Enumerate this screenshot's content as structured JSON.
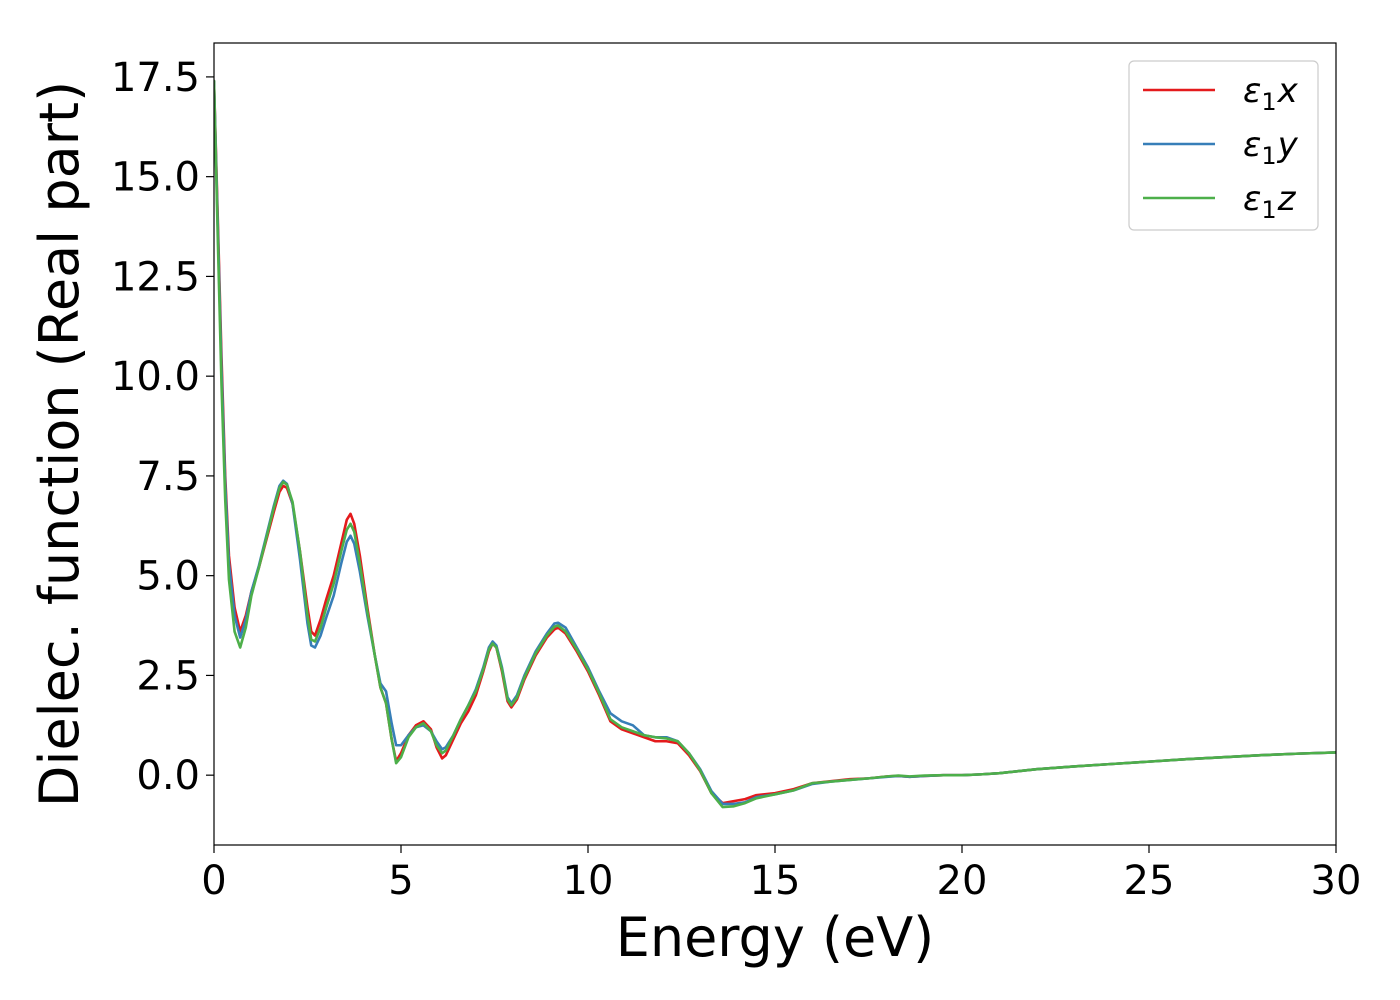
{
  "chart_data": {
    "type": "line",
    "title": "",
    "xlabel": "Energy (eV)",
    "ylabel": "Dielec. function (Real part)",
    "xlim": [
      0,
      30
    ],
    "ylim": [
      -1.75,
      18.35
    ],
    "xticks": [
      0,
      5,
      10,
      15,
      20,
      25,
      30
    ],
    "xtick_labels": [
      "0",
      "5",
      "10",
      "15",
      "20",
      "25",
      "30"
    ],
    "yticks": [
      0.0,
      2.5,
      5.0,
      7.5,
      10.0,
      12.5,
      15.0,
      17.5
    ],
    "ytick_labels": [
      "0.0",
      "2.5",
      "5.0",
      "7.5",
      "10.0",
      "12.5",
      "15.0",
      "17.5"
    ],
    "grid": false,
    "legend_position": "top-right",
    "series": [
      {
        "name": "ε1x",
        "legend": {
          "base": "ε",
          "sub": "1",
          "var": "x"
        },
        "color": "#e41a1c",
        "points": [
          [
            0,
            17.4
          ],
          [
            0.1,
            14.0
          ],
          [
            0.2,
            10.5
          ],
          [
            0.3,
            7.5
          ],
          [
            0.4,
            5.5
          ],
          [
            0.55,
            4.2
          ],
          [
            0.7,
            3.6
          ],
          [
            0.85,
            4.0
          ],
          [
            1.0,
            4.6
          ],
          [
            1.2,
            5.2
          ],
          [
            1.4,
            5.9
          ],
          [
            1.6,
            6.6
          ],
          [
            1.75,
            7.1
          ],
          [
            1.85,
            7.25
          ],
          [
            1.95,
            7.2
          ],
          [
            2.1,
            6.8
          ],
          [
            2.3,
            5.6
          ],
          [
            2.5,
            4.2
          ],
          [
            2.6,
            3.6
          ],
          [
            2.7,
            3.5
          ],
          [
            2.85,
            3.9
          ],
          [
            3.0,
            4.4
          ],
          [
            3.2,
            5.0
          ],
          [
            3.4,
            5.8
          ],
          [
            3.55,
            6.4
          ],
          [
            3.65,
            6.55
          ],
          [
            3.75,
            6.3
          ],
          [
            3.9,
            5.5
          ],
          [
            4.1,
            4.2
          ],
          [
            4.3,
            3.0
          ],
          [
            4.45,
            2.2
          ],
          [
            4.6,
            1.8
          ],
          [
            4.75,
            0.9
          ],
          [
            4.87,
            0.35
          ],
          [
            5.0,
            0.55
          ],
          [
            5.2,
            1.0
          ],
          [
            5.4,
            1.25
          ],
          [
            5.6,
            1.35
          ],
          [
            5.8,
            1.15
          ],
          [
            5.95,
            0.7
          ],
          [
            6.1,
            0.42
          ],
          [
            6.2,
            0.5
          ],
          [
            6.4,
            0.9
          ],
          [
            6.6,
            1.3
          ],
          [
            6.8,
            1.6
          ],
          [
            7.0,
            2.0
          ],
          [
            7.2,
            2.6
          ],
          [
            7.35,
            3.1
          ],
          [
            7.45,
            3.3
          ],
          [
            7.55,
            3.2
          ],
          [
            7.7,
            2.6
          ],
          [
            7.85,
            1.85
          ],
          [
            7.95,
            1.7
          ],
          [
            8.1,
            1.9
          ],
          [
            8.3,
            2.4
          ],
          [
            8.6,
            3.0
          ],
          [
            8.9,
            3.45
          ],
          [
            9.1,
            3.65
          ],
          [
            9.2,
            3.7
          ],
          [
            9.4,
            3.55
          ],
          [
            9.7,
            3.1
          ],
          [
            10.0,
            2.6
          ],
          [
            10.3,
            2.0
          ],
          [
            10.6,
            1.35
          ],
          [
            10.9,
            1.15
          ],
          [
            11.2,
            1.05
          ],
          [
            11.5,
            0.95
          ],
          [
            11.8,
            0.85
          ],
          [
            12.1,
            0.85
          ],
          [
            12.4,
            0.8
          ],
          [
            12.7,
            0.5
          ],
          [
            13.0,
            0.1
          ],
          [
            13.3,
            -0.45
          ],
          [
            13.6,
            -0.7
          ],
          [
            13.9,
            -0.65
          ],
          [
            14.2,
            -0.6
          ],
          [
            14.5,
            -0.5
          ],
          [
            15.0,
            -0.45
          ],
          [
            15.5,
            -0.35
          ],
          [
            16.0,
            -0.2
          ],
          [
            16.5,
            -0.15
          ],
          [
            17.0,
            -0.1
          ],
          [
            17.5,
            -0.08
          ],
          [
            18.0,
            -0.03
          ],
          [
            18.3,
            -0.02
          ],
          [
            18.6,
            -0.04
          ],
          [
            19.0,
            -0.02
          ],
          [
            19.5,
            0.0
          ],
          [
            20.0,
            0.0
          ],
          [
            20.5,
            0.02
          ],
          [
            21.0,
            0.05
          ],
          [
            21.5,
            0.1
          ],
          [
            22.0,
            0.15
          ],
          [
            23.0,
            0.22
          ],
          [
            24.0,
            0.28
          ],
          [
            25.0,
            0.34
          ],
          [
            26.0,
            0.4
          ],
          [
            27.0,
            0.45
          ],
          [
            28.0,
            0.5
          ],
          [
            29.0,
            0.54
          ],
          [
            30.0,
            0.57
          ]
        ]
      },
      {
        "name": "ε1y",
        "legend": {
          "base": "ε",
          "sub": "1",
          "var": "y"
        },
        "color": "#377eb8",
        "points": [
          [
            0,
            17.4
          ],
          [
            0.1,
            13.8
          ],
          [
            0.2,
            10.2
          ],
          [
            0.3,
            7.3
          ],
          [
            0.4,
            5.3
          ],
          [
            0.55,
            4.0
          ],
          [
            0.7,
            3.45
          ],
          [
            0.85,
            3.9
          ],
          [
            1.0,
            4.6
          ],
          [
            1.2,
            5.25
          ],
          [
            1.4,
            6.0
          ],
          [
            1.6,
            6.75
          ],
          [
            1.75,
            7.25
          ],
          [
            1.85,
            7.38
          ],
          [
            1.95,
            7.3
          ],
          [
            2.1,
            6.8
          ],
          [
            2.3,
            5.4
          ],
          [
            2.5,
            3.8
          ],
          [
            2.6,
            3.25
          ],
          [
            2.7,
            3.2
          ],
          [
            2.85,
            3.5
          ],
          [
            3.0,
            3.95
          ],
          [
            3.2,
            4.5
          ],
          [
            3.4,
            5.3
          ],
          [
            3.55,
            5.85
          ],
          [
            3.65,
            6.0
          ],
          [
            3.75,
            5.8
          ],
          [
            3.9,
            5.1
          ],
          [
            4.1,
            4.0
          ],
          [
            4.3,
            3.0
          ],
          [
            4.45,
            2.3
          ],
          [
            4.6,
            2.1
          ],
          [
            4.75,
            1.3
          ],
          [
            4.87,
            0.75
          ],
          [
            5.0,
            0.75
          ],
          [
            5.2,
            1.0
          ],
          [
            5.4,
            1.2
          ],
          [
            5.6,
            1.25
          ],
          [
            5.8,
            1.1
          ],
          [
            5.95,
            0.85
          ],
          [
            6.1,
            0.65
          ],
          [
            6.2,
            0.7
          ],
          [
            6.4,
            1.0
          ],
          [
            6.6,
            1.4
          ],
          [
            6.8,
            1.75
          ],
          [
            7.0,
            2.15
          ],
          [
            7.2,
            2.7
          ],
          [
            7.35,
            3.2
          ],
          [
            7.45,
            3.35
          ],
          [
            7.55,
            3.25
          ],
          [
            7.7,
            2.7
          ],
          [
            7.85,
            1.95
          ],
          [
            7.95,
            1.8
          ],
          [
            8.1,
            2.0
          ],
          [
            8.3,
            2.5
          ],
          [
            8.6,
            3.1
          ],
          [
            8.9,
            3.55
          ],
          [
            9.1,
            3.8
          ],
          [
            9.2,
            3.82
          ],
          [
            9.4,
            3.7
          ],
          [
            9.7,
            3.2
          ],
          [
            10.0,
            2.7
          ],
          [
            10.3,
            2.1
          ],
          [
            10.6,
            1.55
          ],
          [
            10.9,
            1.35
          ],
          [
            11.2,
            1.25
          ],
          [
            11.5,
            1.0
          ],
          [
            11.8,
            0.95
          ],
          [
            12.1,
            0.95
          ],
          [
            12.4,
            0.85
          ],
          [
            12.7,
            0.55
          ],
          [
            13.0,
            0.15
          ],
          [
            13.3,
            -0.4
          ],
          [
            13.6,
            -0.72
          ],
          [
            13.9,
            -0.72
          ],
          [
            14.2,
            -0.68
          ],
          [
            14.5,
            -0.55
          ],
          [
            15.0,
            -0.48
          ],
          [
            15.5,
            -0.38
          ],
          [
            16.0,
            -0.22
          ],
          [
            16.5,
            -0.16
          ],
          [
            17.0,
            -0.12
          ],
          [
            17.5,
            -0.08
          ],
          [
            18.0,
            -0.04
          ],
          [
            18.3,
            -0.02
          ],
          [
            18.6,
            -0.04
          ],
          [
            19.0,
            -0.02
          ],
          [
            19.5,
            0.0
          ],
          [
            20.0,
            0.0
          ],
          [
            20.5,
            0.02
          ],
          [
            21.0,
            0.05
          ],
          [
            21.5,
            0.1
          ],
          [
            22.0,
            0.15
          ],
          [
            23.0,
            0.22
          ],
          [
            24.0,
            0.28
          ],
          [
            25.0,
            0.34
          ],
          [
            26.0,
            0.4
          ],
          [
            27.0,
            0.45
          ],
          [
            28.0,
            0.5
          ],
          [
            29.0,
            0.54
          ],
          [
            30.0,
            0.57
          ]
        ]
      },
      {
        "name": "ε1z",
        "legend": {
          "base": "ε",
          "sub": "1",
          "var": "z"
        },
        "color": "#4daf4a",
        "points": [
          [
            0,
            17.4
          ],
          [
            0.1,
            13.5
          ],
          [
            0.2,
            9.8
          ],
          [
            0.3,
            6.9
          ],
          [
            0.4,
            4.9
          ],
          [
            0.55,
            3.6
          ],
          [
            0.7,
            3.2
          ],
          [
            0.85,
            3.7
          ],
          [
            1.0,
            4.5
          ],
          [
            1.2,
            5.2
          ],
          [
            1.4,
            5.95
          ],
          [
            1.6,
            6.7
          ],
          [
            1.75,
            7.2
          ],
          [
            1.85,
            7.35
          ],
          [
            1.95,
            7.28
          ],
          [
            2.1,
            6.85
          ],
          [
            2.3,
            5.6
          ],
          [
            2.5,
            4.0
          ],
          [
            2.6,
            3.4
          ],
          [
            2.7,
            3.35
          ],
          [
            2.85,
            3.7
          ],
          [
            3.0,
            4.2
          ],
          [
            3.2,
            4.8
          ],
          [
            3.4,
            5.6
          ],
          [
            3.55,
            6.15
          ],
          [
            3.65,
            6.3
          ],
          [
            3.75,
            6.1
          ],
          [
            3.9,
            5.3
          ],
          [
            4.1,
            4.1
          ],
          [
            4.3,
            3.0
          ],
          [
            4.45,
            2.2
          ],
          [
            4.6,
            1.8
          ],
          [
            4.75,
            0.9
          ],
          [
            4.87,
            0.3
          ],
          [
            5.0,
            0.45
          ],
          [
            5.2,
            0.95
          ],
          [
            5.4,
            1.2
          ],
          [
            5.6,
            1.3
          ],
          [
            5.8,
            1.1
          ],
          [
            5.95,
            0.75
          ],
          [
            6.1,
            0.55
          ],
          [
            6.2,
            0.62
          ],
          [
            6.4,
            1.0
          ],
          [
            6.6,
            1.4
          ],
          [
            6.8,
            1.75
          ],
          [
            7.0,
            2.1
          ],
          [
            7.2,
            2.65
          ],
          [
            7.35,
            3.15
          ],
          [
            7.45,
            3.3
          ],
          [
            7.55,
            3.2
          ],
          [
            7.7,
            2.65
          ],
          [
            7.85,
            1.9
          ],
          [
            7.95,
            1.75
          ],
          [
            8.1,
            1.95
          ],
          [
            8.3,
            2.45
          ],
          [
            8.6,
            3.05
          ],
          [
            8.9,
            3.5
          ],
          [
            9.1,
            3.72
          ],
          [
            9.2,
            3.75
          ],
          [
            9.4,
            3.6
          ],
          [
            9.7,
            3.15
          ],
          [
            10.0,
            2.65
          ],
          [
            10.3,
            2.05
          ],
          [
            10.6,
            1.4
          ],
          [
            10.9,
            1.2
          ],
          [
            11.2,
            1.1
          ],
          [
            11.5,
            1.0
          ],
          [
            11.8,
            0.95
          ],
          [
            12.1,
            0.92
          ],
          [
            12.4,
            0.85
          ],
          [
            12.7,
            0.55
          ],
          [
            13.0,
            0.12
          ],
          [
            13.3,
            -0.45
          ],
          [
            13.6,
            -0.8
          ],
          [
            13.9,
            -0.78
          ],
          [
            14.2,
            -0.7
          ],
          [
            14.5,
            -0.58
          ],
          [
            15.0,
            -0.48
          ],
          [
            15.5,
            -0.38
          ],
          [
            16.0,
            -0.2
          ],
          [
            16.5,
            -0.16
          ],
          [
            17.0,
            -0.12
          ],
          [
            17.5,
            -0.08
          ],
          [
            18.0,
            -0.03
          ],
          [
            18.3,
            -0.01
          ],
          [
            18.6,
            -0.03
          ],
          [
            19.0,
            -0.01
          ],
          [
            19.5,
            0.0
          ],
          [
            20.0,
            0.0
          ],
          [
            20.5,
            0.02
          ],
          [
            21.0,
            0.05
          ],
          [
            21.5,
            0.1
          ],
          [
            22.0,
            0.15
          ],
          [
            23.0,
            0.22
          ],
          [
            24.0,
            0.28
          ],
          [
            25.0,
            0.34
          ],
          [
            26.0,
            0.4
          ],
          [
            27.0,
            0.45
          ],
          [
            28.0,
            0.5
          ],
          [
            29.0,
            0.54
          ],
          [
            30.0,
            0.57
          ]
        ]
      }
    ]
  }
}
